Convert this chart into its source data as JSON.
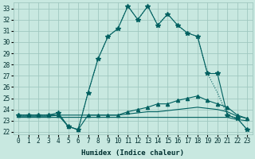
{
  "xlabel": "Humidex (Indice chaleur)",
  "xlim": [
    -0.5,
    23.5
  ],
  "ylim": [
    21.8,
    33.5
  ],
  "yticks": [
    22,
    23,
    24,
    25,
    26,
    27,
    28,
    29,
    30,
    31,
    32,
    33
  ],
  "xticks": [
    0,
    1,
    2,
    3,
    4,
    5,
    6,
    7,
    8,
    9,
    10,
    11,
    12,
    13,
    14,
    15,
    16,
    17,
    18,
    19,
    20,
    21,
    22,
    23
  ],
  "bg_color": "#c8e8e0",
  "grid_color": "#a0c8c0",
  "line_color": "#006060",
  "lines": [
    {
      "x": [
        0,
        1,
        2,
        3,
        4,
        5,
        6,
        7,
        8,
        9,
        10,
        11,
        12,
        13,
        14,
        15,
        16,
        17,
        18,
        19,
        20,
        21,
        22,
        23
      ],
      "y": [
        23.5,
        23.5,
        23.5,
        23.5,
        23.7,
        22.5,
        22.2,
        25.5,
        28.5,
        30.5,
        31.2,
        33.2,
        32.0,
        33.2,
        31.5,
        32.5,
        31.5,
        30.8,
        30.5,
        27.2,
        27.2,
        23.5,
        23.2,
        22.2
      ],
      "marker": "*",
      "markersize": 4,
      "linestyle": "-",
      "linewidth": 0.8
    },
    {
      "x": [
        0,
        1,
        2,
        3,
        4,
        5,
        6,
        7,
        8,
        9,
        10,
        11,
        12,
        13,
        14,
        15,
        16,
        17,
        18,
        19,
        20,
        21,
        22,
        23
      ],
      "y": [
        23.5,
        23.5,
        23.5,
        23.5,
        23.5,
        22.5,
        22.2,
        25.5,
        28.5,
        30.5,
        31.2,
        33.2,
        32.0,
        33.2,
        31.5,
        32.5,
        31.5,
        30.8,
        30.5,
        27.2,
        25.5,
        23.5,
        23.2,
        22.2
      ],
      "marker": null,
      "markersize": 0,
      "linestyle": ":",
      "linewidth": 0.8
    },
    {
      "x": [
        0,
        1,
        2,
        3,
        4,
        5,
        6,
        7,
        8,
        9,
        10,
        11,
        12,
        13,
        14,
        15,
        16,
        17,
        18,
        19,
        20,
        21,
        22,
        23
      ],
      "y": [
        23.5,
        23.5,
        23.5,
        23.5,
        23.5,
        22.5,
        22.2,
        23.5,
        23.5,
        23.5,
        23.5,
        23.8,
        24.0,
        24.2,
        24.5,
        24.5,
        24.8,
        25.0,
        25.2,
        24.8,
        24.5,
        24.2,
        23.5,
        23.2
      ],
      "marker": "^",
      "markersize": 3,
      "linestyle": "-",
      "linewidth": 0.8
    },
    {
      "x": [
        0,
        1,
        2,
        3,
        4,
        5,
        6,
        7,
        8,
        9,
        10,
        11,
        12,
        13,
        14,
        15,
        16,
        17,
        18,
        19,
        20,
        21,
        22,
        23
      ],
      "y": [
        23.4,
        23.4,
        23.4,
        23.4,
        23.5,
        23.5,
        23.5,
        23.5,
        23.5,
        23.5,
        23.5,
        23.6,
        23.7,
        23.8,
        23.8,
        23.9,
        24.0,
        24.1,
        24.2,
        24.1,
        24.0,
        23.8,
        23.4,
        23.2
      ],
      "marker": null,
      "markersize": 0,
      "linestyle": "-",
      "linewidth": 0.8
    },
    {
      "x": [
        0,
        1,
        2,
        3,
        4,
        5,
        6,
        7,
        8,
        9,
        10,
        11,
        12,
        13,
        14,
        15,
        16,
        17,
        18,
        19,
        20,
        21,
        22,
        23
      ],
      "y": [
        23.3,
        23.3,
        23.3,
        23.3,
        23.3,
        23.3,
        23.3,
        23.3,
        23.3,
        23.3,
        23.3,
        23.3,
        23.3,
        23.3,
        23.3,
        23.3,
        23.3,
        23.3,
        23.3,
        23.3,
        23.3,
        23.3,
        23.1,
        23.0
      ],
      "marker": null,
      "markersize": 0,
      "linestyle": "-",
      "linewidth": 0.8
    }
  ]
}
